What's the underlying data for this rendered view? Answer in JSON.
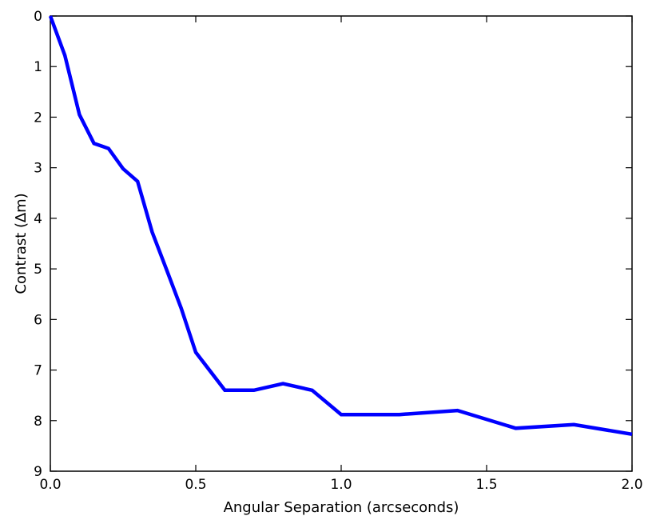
{
  "chart_data": {
    "type": "line",
    "title": "",
    "xlabel": "Angular Separation (arcseconds)",
    "ylabel": "Contrast (∆m)",
    "xlim": [
      0.0,
      2.0
    ],
    "ylim": [
      0,
      9
    ],
    "y_inverted": true,
    "grid": false,
    "x_ticks": [
      "0.0",
      "0.5",
      "1.0",
      "1.5",
      "2.0"
    ],
    "x_tick_values": [
      0.0,
      0.5,
      1.0,
      1.5,
      2.0
    ],
    "y_ticks": [
      "0",
      "1",
      "2",
      "3",
      "4",
      "5",
      "6",
      "7",
      "8",
      "9"
    ],
    "y_tick_values": [
      0,
      1,
      2,
      3,
      4,
      5,
      6,
      7,
      8,
      9
    ],
    "series": [
      {
        "color": "#0000ff",
        "x": [
          0.0,
          0.05,
          0.1,
          0.15,
          0.2,
          0.25,
          0.3,
          0.35,
          0.4,
          0.45,
          0.5,
          0.6,
          0.7,
          0.8,
          0.9,
          1.0,
          1.2,
          1.4,
          1.6,
          1.8,
          2.0
        ],
        "y": [
          0.0,
          0.78,
          1.95,
          2.52,
          2.62,
          3.02,
          3.27,
          4.27,
          5.02,
          5.78,
          6.65,
          7.4,
          7.4,
          7.27,
          7.4,
          7.88,
          7.88,
          7.8,
          8.15,
          8.08,
          8.27
        ]
      }
    ]
  }
}
